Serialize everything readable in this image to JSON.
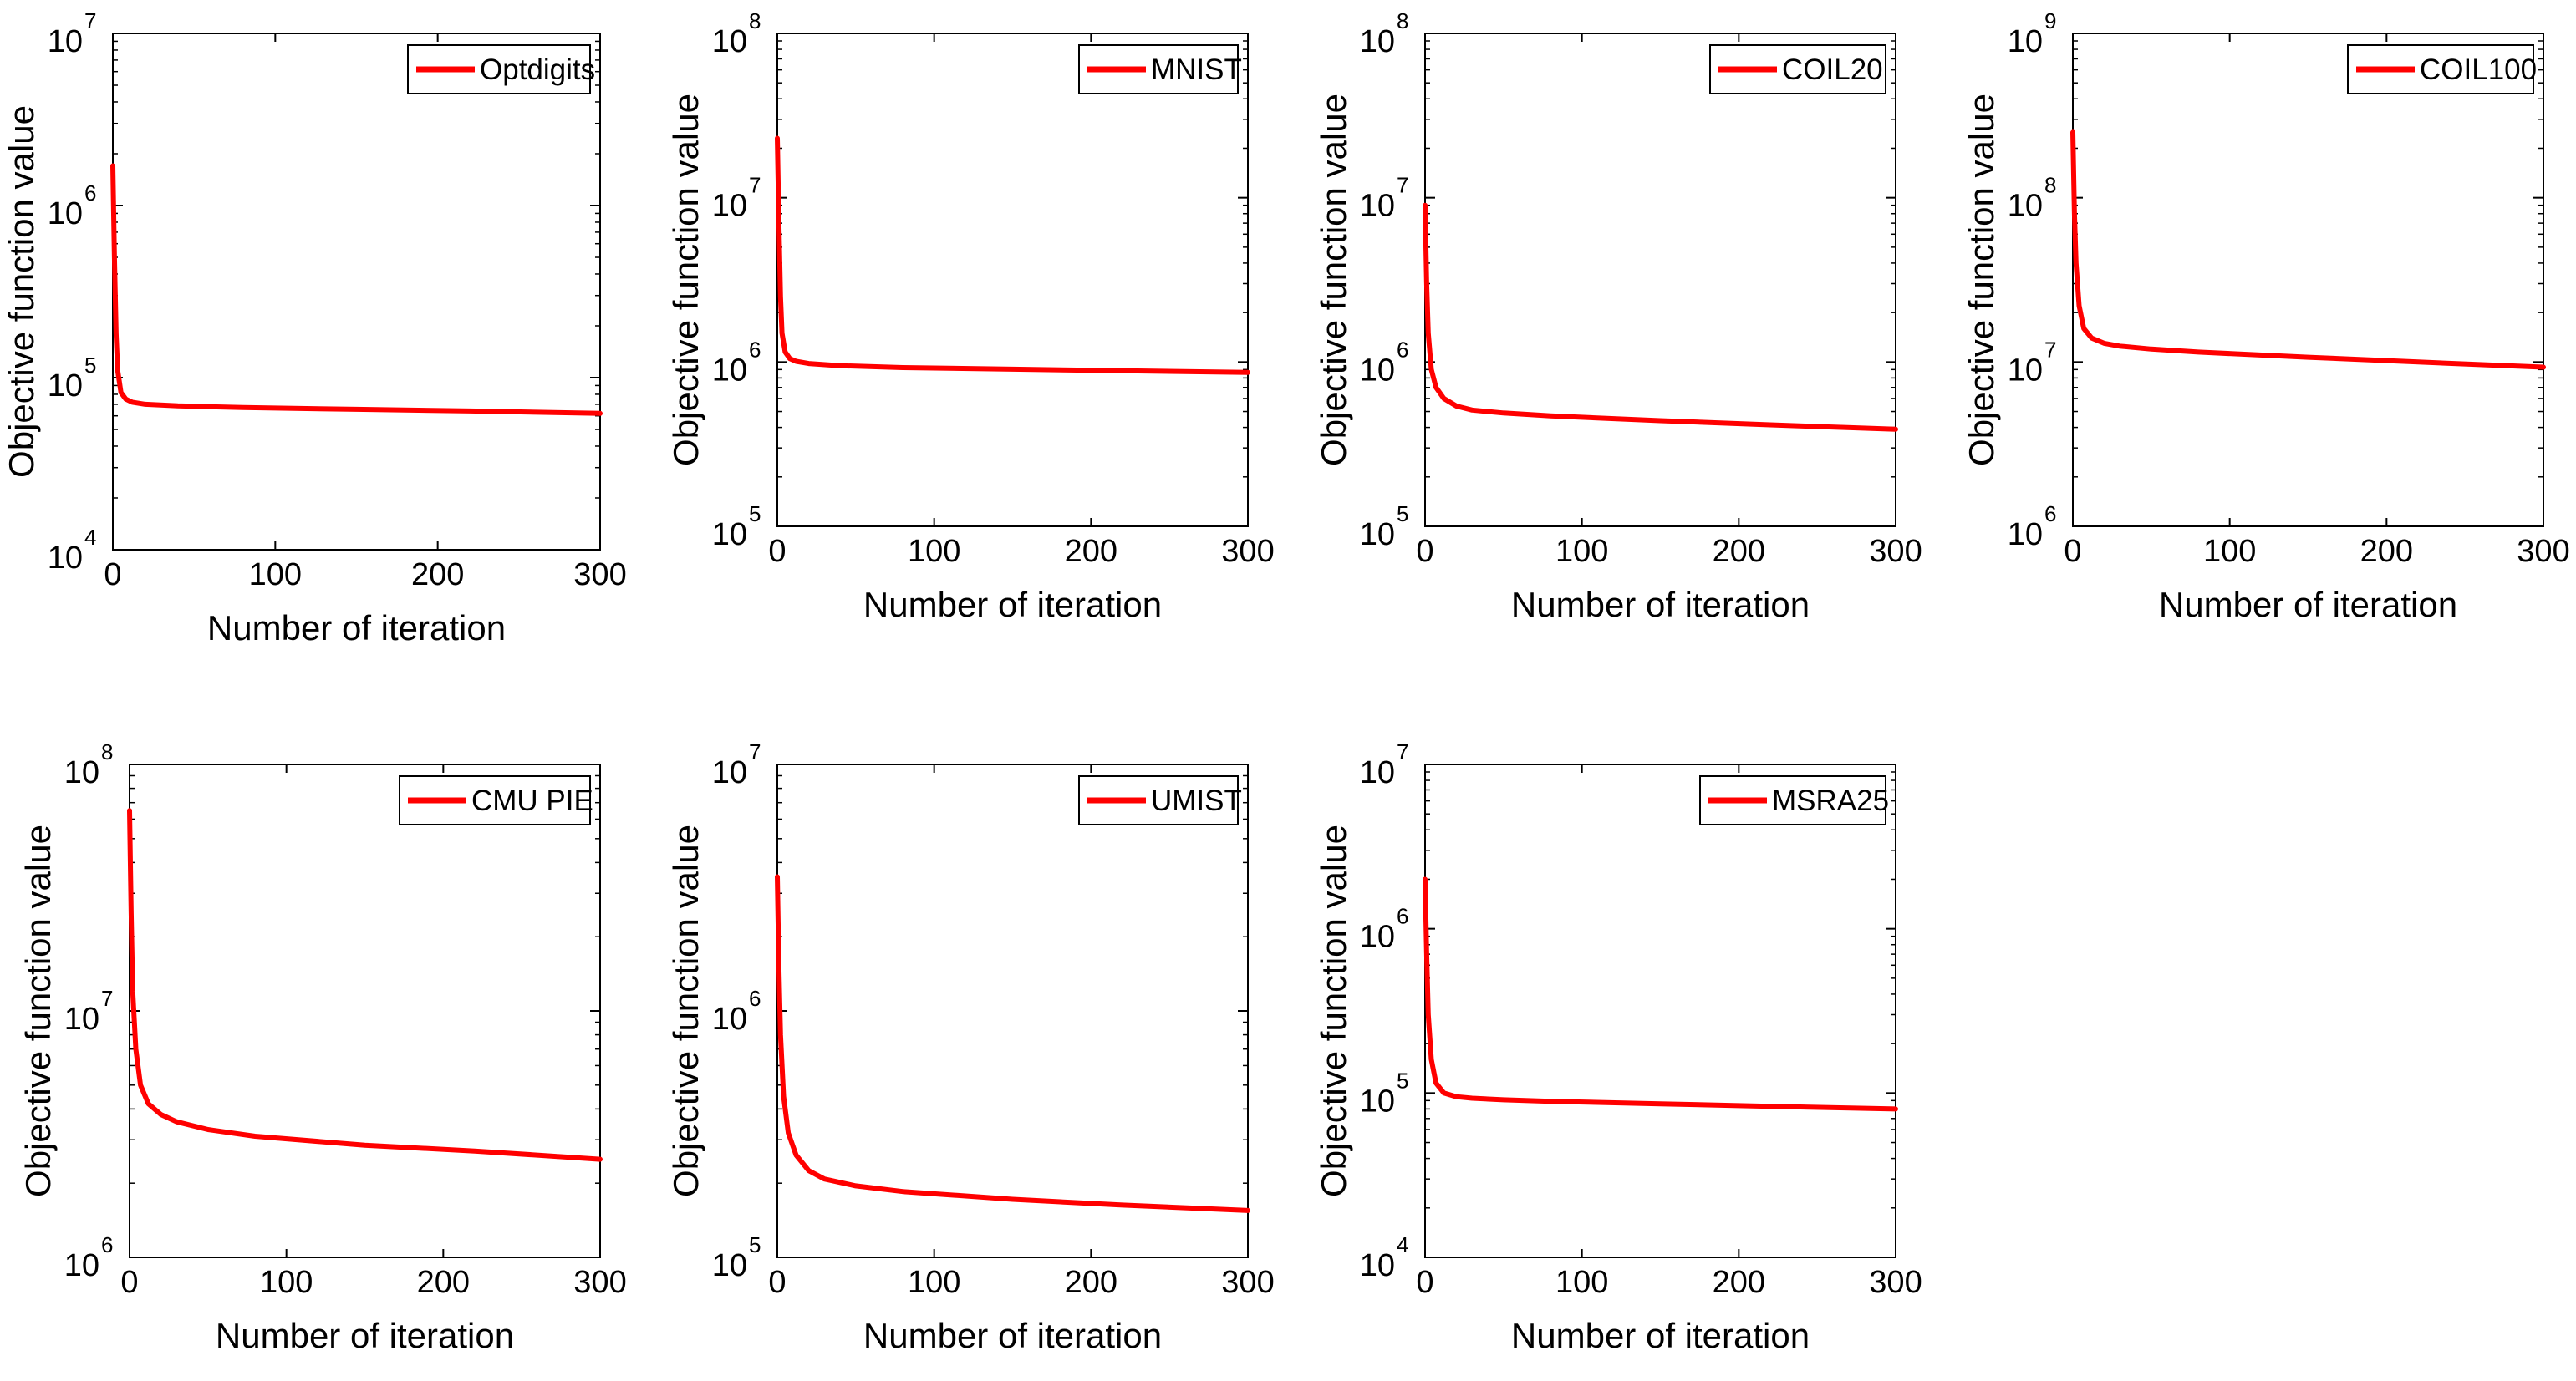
{
  "chart_data": [
    {
      "type": "line",
      "legend": "Optdigits",
      "xlabel": "Number of iteration",
      "ylabel": "Objective function value",
      "yscale": "log",
      "xlim": [
        0,
        300
      ],
      "ylim_exp": [
        4,
        7
      ],
      "xticks": [
        "0",
        "100",
        "200",
        "300"
      ],
      "yticks_exp": [
        "4",
        "5",
        "6",
        "7"
      ],
      "legend_location": "top-right",
      "color": "#ff0000",
      "x": [
        0,
        1,
        2,
        3,
        5,
        8,
        12,
        20,
        40,
        80,
        150,
        220,
        300
      ],
      "y": [
        1700000,
        500000,
        180000,
        110000,
        82000,
        75000,
        72000,
        70000,
        68500,
        67000,
        65500,
        64000,
        62000
      ]
    },
    {
      "type": "line",
      "legend": "MNIST",
      "xlabel": "Number of iteration",
      "ylabel": "Objective function value",
      "yscale": "log",
      "xlim": [
        0,
        300
      ],
      "ylim_exp": [
        5,
        8
      ],
      "xticks": [
        "0",
        "100",
        "200",
        "300"
      ],
      "yticks_exp": [
        "5",
        "6",
        "7",
        "8"
      ],
      "legend_location": "top-right",
      "color": "#ff0000",
      "x": [
        0,
        1,
        2,
        3,
        5,
        8,
        12,
        20,
        40,
        80,
        150,
        220,
        300
      ],
      "y": [
        23000000,
        7000000,
        2500000,
        1500000,
        1150000,
        1050000,
        1010000,
        980000,
        950000,
        925000,
        905000,
        885000,
        865000
      ]
    },
    {
      "type": "line",
      "legend": "COIL20",
      "xlabel": "Number of iteration",
      "ylabel": "Objective function value",
      "yscale": "log",
      "xlim": [
        0,
        300
      ],
      "ylim_exp": [
        5,
        8
      ],
      "xticks": [
        "0",
        "100",
        "200",
        "300"
      ],
      "yticks_exp": [
        "5",
        "6",
        "7",
        "8"
      ],
      "legend_location": "top-right",
      "color": "#ff0000",
      "x": [
        0,
        1,
        2,
        4,
        7,
        12,
        20,
        30,
        50,
        80,
        150,
        220,
        300
      ],
      "y": [
        9000000,
        3000000,
        1500000,
        900000,
        700000,
        600000,
        540000,
        510000,
        490000,
        470000,
        440000,
        415000,
        390000
      ]
    },
    {
      "type": "line",
      "legend": "COIL100",
      "xlabel": "Number of iteration",
      "ylabel": "Objective function value",
      "yscale": "log",
      "xlim": [
        0,
        300
      ],
      "ylim_exp": [
        6,
        9
      ],
      "xticks": [
        "0",
        "100",
        "200",
        "300"
      ],
      "yticks_exp": [
        "6",
        "7",
        "8",
        "9"
      ],
      "legend_location": "top-right",
      "color": "#ff0000",
      "x": [
        0,
        1,
        2,
        4,
        7,
        12,
        20,
        30,
        50,
        80,
        150,
        220,
        300
      ],
      "y": [
        250000000,
        80000000,
        40000000,
        22000000,
        16000000,
        14000000,
        13000000,
        12500000,
        12000000,
        11500000,
        10700000,
        10000000,
        9300000
      ]
    },
    {
      "type": "line",
      "legend": "CMU PIE",
      "xlabel": "Number of iteration",
      "ylabel": "Objective function value",
      "yscale": "log",
      "xlim": [
        0,
        300
      ],
      "ylim_exp": [
        6,
        8
      ],
      "xticks": [
        "0",
        "100",
        "200",
        "300"
      ],
      "yticks_exp": [
        "6",
        "7",
        "8"
      ],
      "legend_location": "top-right",
      "color": "#ff0000",
      "x": [
        0,
        1,
        2,
        4,
        7,
        12,
        20,
        30,
        50,
        80,
        150,
        220,
        300
      ],
      "y": [
        65000000,
        25000000,
        12000000,
        7000000,
        5000000,
        4200000,
        3800000,
        3550000,
        3300000,
        3100000,
        2850000,
        2700000,
        2500000
      ]
    },
    {
      "type": "line",
      "legend": "UMIST",
      "xlabel": "Number of iteration",
      "ylabel": "Objective function value",
      "yscale": "log",
      "xlim": [
        0,
        300
      ],
      "ylim_exp": [
        5,
        7
      ],
      "xticks": [
        "0",
        "100",
        "200",
        "300"
      ],
      "yticks_exp": [
        "5",
        "6",
        "7"
      ],
      "legend_location": "top-right",
      "color": "#ff0000",
      "x": [
        0,
        1,
        2,
        4,
        7,
        12,
        20,
        30,
        50,
        80,
        150,
        220,
        300
      ],
      "y": [
        3500000,
        1500000,
        800000,
        450000,
        320000,
        260000,
        225000,
        208000,
        195000,
        185000,
        172000,
        163000,
        155000
      ]
    },
    {
      "type": "line",
      "legend": "MSRA25",
      "xlabel": "Number of iteration",
      "ylabel": "Objective function value",
      "yscale": "log",
      "xlim": [
        0,
        300
      ],
      "ylim_exp": [
        4,
        7
      ],
      "xticks": [
        "0",
        "100",
        "200",
        "300"
      ],
      "yticks_exp": [
        "4",
        "5",
        "6",
        "7"
      ],
      "legend_location": "top-right",
      "color": "#ff0000",
      "x": [
        0,
        1,
        2,
        4,
        7,
        12,
        20,
        30,
        50,
        80,
        150,
        220,
        300
      ],
      "y": [
        2000000,
        700000,
        300000,
        160000,
        115000,
        100000,
        95000,
        93000,
        91000,
        89000,
        86000,
        83000,
        80000
      ]
    }
  ]
}
